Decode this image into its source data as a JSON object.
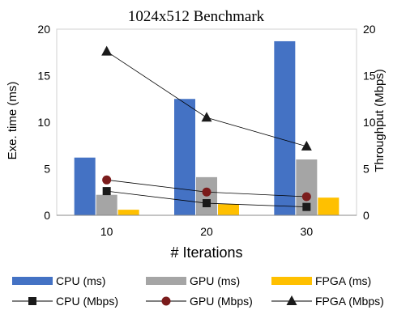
{
  "chart_data": {
    "type": "bar",
    "title": "1024x512 Benchmark",
    "xlabel": "# Iterations",
    "ylabel": "Exe. time (ms)",
    "y2label": "Throughput (Mbps)",
    "categories": [
      "10",
      "20",
      "30"
    ],
    "ylim": [
      0,
      20
    ],
    "y2lim": [
      0,
      20
    ],
    "yticks": [
      "0",
      "5",
      "10",
      "15",
      "20"
    ],
    "y2ticks": [
      "0",
      "5",
      "10",
      "15",
      "20"
    ],
    "series": [
      {
        "name": "CPU (ms)",
        "type": "bar",
        "axis": "left",
        "color": "#4472C4",
        "values": [
          6.2,
          12.5,
          18.7
        ]
      },
      {
        "name": "GPU (ms)",
        "type": "bar",
        "axis": "left",
        "color": "#A5A5A5",
        "values": [
          2.2,
          4.1,
          6.0
        ]
      },
      {
        "name": "FPGA (ms)",
        "type": "bar",
        "axis": "left",
        "color": "#FFC000",
        "values": [
          0.6,
          1.2,
          1.9
        ]
      },
      {
        "name": "CPU (Mbps)",
        "type": "line",
        "axis": "right",
        "marker": "square",
        "color": "#1a1a1a",
        "values": [
          2.6,
          1.3,
          0.9
        ]
      },
      {
        "name": "GPU (Mbps)",
        "type": "line",
        "axis": "right",
        "marker": "circle",
        "color": "#7B1C1C",
        "values": [
          3.8,
          2.5,
          2.0
        ]
      },
      {
        "name": "FPGA (Mbps)",
        "type": "line",
        "axis": "right",
        "marker": "triangle",
        "color": "#1a1a1a",
        "values": [
          17.6,
          10.5,
          7.4
        ]
      }
    ],
    "legend_position": "bottom",
    "grid": false
  }
}
